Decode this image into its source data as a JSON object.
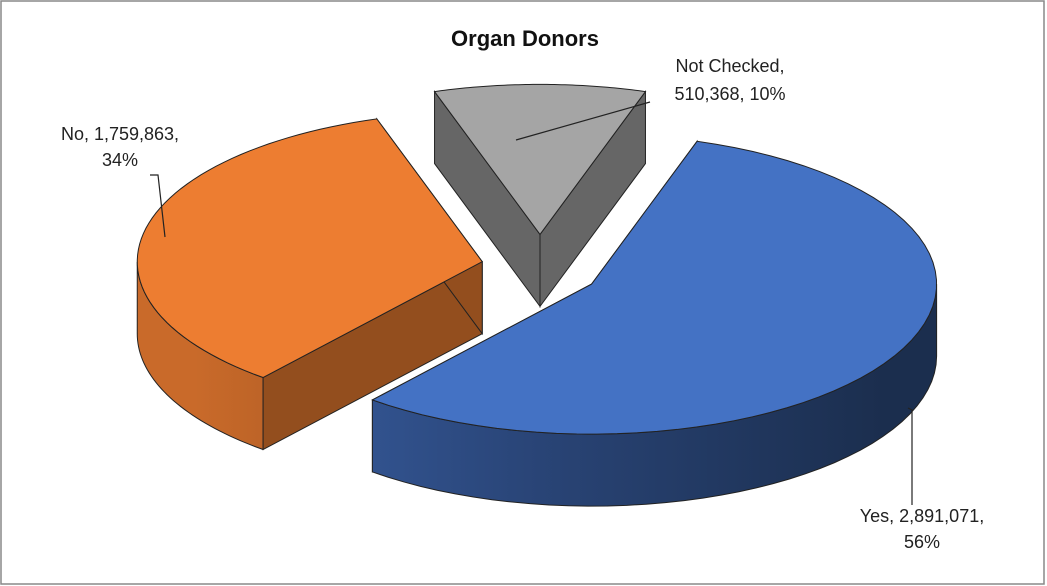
{
  "chart_data": {
    "type": "pie3d",
    "title": "Organ Donors",
    "values": [
      2891071,
      1759863,
      510368
    ],
    "data_labels": [
      [
        "Yes, 2,891,071,",
        "56%"
      ],
      [
        "No, 1,759,863,",
        "34%"
      ],
      [
        "Not Checked,",
        "510,368, 10%"
      ]
    ],
    "colors": [
      "#4472c4",
      "#ed7d31",
      "#a5a5a5"
    ]
  }
}
